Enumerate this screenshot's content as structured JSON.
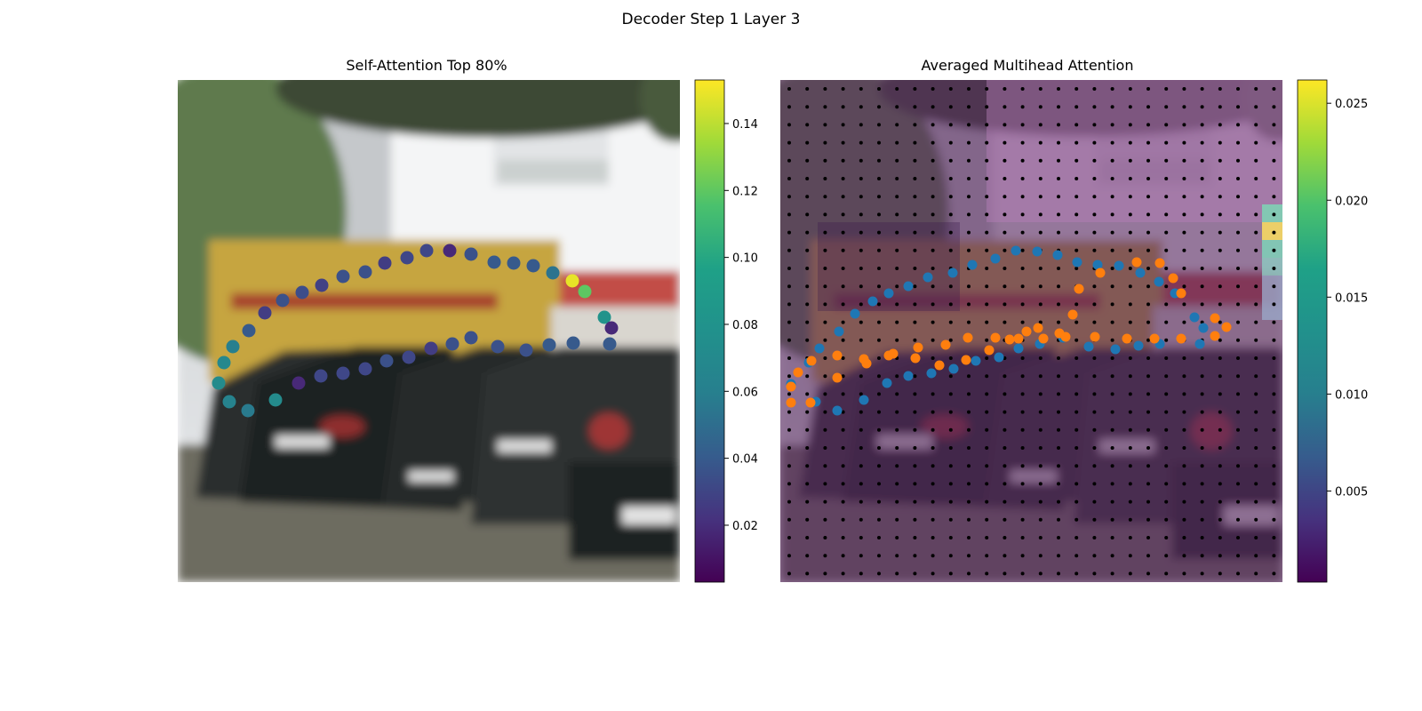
{
  "figure": {
    "title": "Decoder Step 1 Layer 3"
  },
  "chart_data": [
    {
      "type": "scatter",
      "title": "Self-Attention Top 80%",
      "background": "blurred street photo: parked cars in front of a yellow DHL van and a white building",
      "colormap": "viridis",
      "colorbar": {
        "ticks": [
          "0.02",
          "0.04",
          "0.06",
          "0.08",
          "0.10",
          "0.12",
          "0.14"
        ],
        "range": [
          0.003,
          0.153
        ]
      },
      "points": [
        {
          "x": 246,
          "y": 431,
          "v": 0.075
        },
        {
          "x": 252,
          "y": 408,
          "v": 0.073
        },
        {
          "x": 262,
          "y": 390,
          "v": 0.068
        },
        {
          "x": 280,
          "y": 372,
          "v": 0.045
        },
        {
          "x": 298,
          "y": 352,
          "v": 0.03
        },
        {
          "x": 318,
          "y": 338,
          "v": 0.04
        },
        {
          "x": 340,
          "y": 329,
          "v": 0.038
        },
        {
          "x": 362,
          "y": 321,
          "v": 0.032
        },
        {
          "x": 386,
          "y": 311,
          "v": 0.04
        },
        {
          "x": 411,
          "y": 306,
          "v": 0.04
        },
        {
          "x": 433,
          "y": 296,
          "v": 0.03
        },
        {
          "x": 458,
          "y": 290,
          "v": 0.035
        },
        {
          "x": 480,
          "y": 282,
          "v": 0.035
        },
        {
          "x": 506,
          "y": 282,
          "v": 0.02
        },
        {
          "x": 530,
          "y": 286,
          "v": 0.04
        },
        {
          "x": 556,
          "y": 295,
          "v": 0.045
        },
        {
          "x": 578,
          "y": 296,
          "v": 0.045
        },
        {
          "x": 600,
          "y": 299,
          "v": 0.045
        },
        {
          "x": 622,
          "y": 307,
          "v": 0.06
        },
        {
          "x": 644,
          "y": 316,
          "v": 0.148
        },
        {
          "x": 658,
          "y": 328,
          "v": 0.115
        },
        {
          "x": 680,
          "y": 357,
          "v": 0.08
        },
        {
          "x": 688,
          "y": 369,
          "v": 0.02
        },
        {
          "x": 686,
          "y": 387,
          "v": 0.045
        },
        {
          "x": 645,
          "y": 386,
          "v": 0.045
        },
        {
          "x": 618,
          "y": 388,
          "v": 0.045
        },
        {
          "x": 592,
          "y": 394,
          "v": 0.04
        },
        {
          "x": 560,
          "y": 390,
          "v": 0.04
        },
        {
          "x": 530,
          "y": 380,
          "v": 0.04
        },
        {
          "x": 509,
          "y": 387,
          "v": 0.04
        },
        {
          "x": 485,
          "y": 392,
          "v": 0.03
        },
        {
          "x": 460,
          "y": 402,
          "v": 0.035
        },
        {
          "x": 435,
          "y": 406,
          "v": 0.04
        },
        {
          "x": 411,
          "y": 415,
          "v": 0.035
        },
        {
          "x": 386,
          "y": 420,
          "v": 0.035
        },
        {
          "x": 361,
          "y": 423,
          "v": 0.035
        },
        {
          "x": 336,
          "y": 431,
          "v": 0.02
        },
        {
          "x": 310,
          "y": 450,
          "v": 0.075
        },
        {
          "x": 279,
          "y": 462,
          "v": 0.065
        },
        {
          "x": 258,
          "y": 452,
          "v": 0.07
        }
      ]
    },
    {
      "type": "scatter",
      "title": "Averaged Multihead Attention",
      "background": "same photo overlaid by a purple attention heatmap with a grid of black dots",
      "colormap": "viridis",
      "colorbar": {
        "ticks": [
          "0.005",
          "0.010",
          "0.015",
          "0.020",
          "0.025"
        ],
        "range": [
          0.0003,
          0.0262
        ]
      },
      "series": [
        {
          "color": "#1f77b4",
          "points": [
            {
              "x": 890,
              "y": 432
            },
            {
              "x": 910,
              "y": 408
            },
            {
              "x": 922,
              "y": 392
            },
            {
              "x": 944,
              "y": 373
            },
            {
              "x": 962,
              "y": 353
            },
            {
              "x": 982,
              "y": 339
            },
            {
              "x": 1000,
              "y": 330
            },
            {
              "x": 1022,
              "y": 322
            },
            {
              "x": 1044,
              "y": 312
            },
            {
              "x": 1072,
              "y": 307
            },
            {
              "x": 1094,
              "y": 298
            },
            {
              "x": 1120,
              "y": 291
            },
            {
              "x": 1143,
              "y": 282
            },
            {
              "x": 1167,
              "y": 283
            },
            {
              "x": 1190,
              "y": 287
            },
            {
              "x": 1212,
              "y": 295
            },
            {
              "x": 1235,
              "y": 298
            },
            {
              "x": 1259,
              "y": 299
            },
            {
              "x": 1283,
              "y": 307
            },
            {
              "x": 1304,
              "y": 317
            },
            {
              "x": 1322,
              "y": 330
            },
            {
              "x": 1344,
              "y": 357
            },
            {
              "x": 1354,
              "y": 369
            },
            {
              "x": 1350,
              "y": 387
            },
            {
              "x": 1305,
              "y": 387
            },
            {
              "x": 1281,
              "y": 389
            },
            {
              "x": 1255,
              "y": 393
            },
            {
              "x": 1225,
              "y": 390
            },
            {
              "x": 1196,
              "y": 380
            },
            {
              "x": 1170,
              "y": 387
            },
            {
              "x": 1146,
              "y": 392
            },
            {
              "x": 1124,
              "y": 402
            },
            {
              "x": 1098,
              "y": 406
            },
            {
              "x": 1073,
              "y": 415
            },
            {
              "x": 1048,
              "y": 420
            },
            {
              "x": 1022,
              "y": 423
            },
            {
              "x": 998,
              "y": 431
            },
            {
              "x": 972,
              "y": 450
            },
            {
              "x": 942,
              "y": 462
            },
            {
              "x": 918,
              "y": 452
            }
          ]
        },
        {
          "color": "#ff7f0e",
          "points": [
            {
              "x": 890,
              "y": 453
            },
            {
              "x": 890,
              "y": 435
            },
            {
              "x": 898,
              "y": 419
            },
            {
              "x": 913,
              "y": 406
            },
            {
              "x": 942,
              "y": 400
            },
            {
              "x": 942,
              "y": 425
            },
            {
              "x": 972,
              "y": 404
            },
            {
              "x": 975,
              "y": 409
            },
            {
              "x": 1000,
              "y": 400
            },
            {
              "x": 1005,
              "y": 398
            },
            {
              "x": 1030,
              "y": 403
            },
            {
              "x": 1033,
              "y": 391
            },
            {
              "x": 1057,
              "y": 411
            },
            {
              "x": 1064,
              "y": 388
            },
            {
              "x": 1087,
              "y": 405
            },
            {
              "x": 1089,
              "y": 380
            },
            {
              "x": 1113,
              "y": 394
            },
            {
              "x": 1120,
              "y": 380
            },
            {
              "x": 1136,
              "y": 382
            },
            {
              "x": 1146,
              "y": 381
            },
            {
              "x": 1155,
              "y": 373
            },
            {
              "x": 1168,
              "y": 369
            },
            {
              "x": 1174,
              "y": 381
            },
            {
              "x": 1192,
              "y": 375
            },
            {
              "x": 1199,
              "y": 379
            },
            {
              "x": 1207,
              "y": 354
            },
            {
              "x": 1214,
              "y": 325
            },
            {
              "x": 1232,
              "y": 379
            },
            {
              "x": 1238,
              "y": 307
            },
            {
              "x": 1268,
              "y": 381
            },
            {
              "x": 1279,
              "y": 295
            },
            {
              "x": 1299,
              "y": 381
            },
            {
              "x": 1305,
              "y": 296
            },
            {
              "x": 1320,
              "y": 313
            },
            {
              "x": 1329,
              "y": 330
            },
            {
              "x": 1329,
              "y": 381
            },
            {
              "x": 1367,
              "y": 358
            },
            {
              "x": 1367,
              "y": 378
            },
            {
              "x": 1380,
              "y": 368
            },
            {
              "x": 912,
              "y": 453
            }
          ]
        }
      ]
    }
  ]
}
